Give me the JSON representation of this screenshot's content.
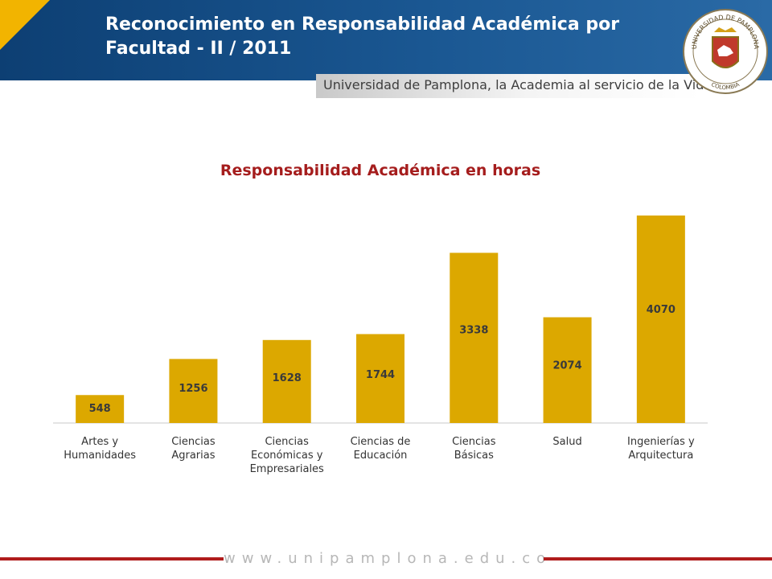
{
  "header": {
    "title": "Reconocimiento en Responsabilidad Académica por Facultad -  II / 2011",
    "tagline": "Universidad de Pamplona, la Academia al servicio de la Vida"
  },
  "seal": {
    "ring_text_top": "UNIVERSIDAD DE PAMPLONA",
    "ring_text_bottom": "COLOMBIA"
  },
  "footer": {
    "url": "www.unipamplona.edu.co"
  },
  "colors": {
    "bar": "#dca800",
    "title": "#a51d1d",
    "header": "#14497f",
    "accent": "#f2b400",
    "footer_line": "#b01c1c"
  },
  "chart_data": {
    "type": "bar",
    "title": "Responsabilidad Académica en horas",
    "categories": [
      [
        "Artes y",
        "Humanidades"
      ],
      [
        "Ciencias",
        "Agrarias"
      ],
      [
        "Ciencias",
        "Económicas y",
        "Empresariales"
      ],
      [
        "Ciencias de",
        "Educación"
      ],
      [
        "Ciencias",
        "Básicas"
      ],
      [
        "Salud"
      ],
      [
        "Ingenierías y",
        "Arquitectura"
      ]
    ],
    "values": [
      548,
      1256,
      1628,
      1744,
      3338,
      2074,
      4070
    ],
    "grid": false,
    "legend": "none"
  }
}
